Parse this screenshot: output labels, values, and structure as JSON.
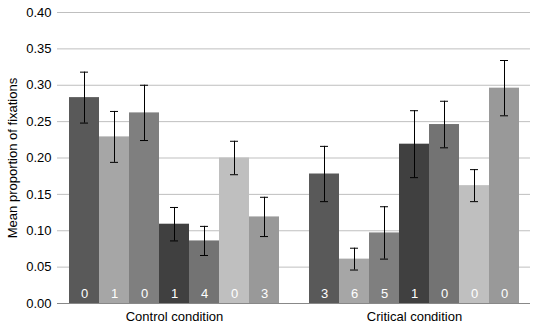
{
  "chart_data": {
    "type": "bar",
    "y_label": "Mean proportion of fixations",
    "categories": [
      "Control condition",
      "Critical condition"
    ],
    "series": [
      {
        "color": "#595959",
        "values": [
          0.283,
          0.178
        ],
        "errors": [
          0.035,
          0.038
        ],
        "counts": [
          0,
          3
        ]
      },
      {
        "color": "#a6a6a6",
        "values": [
          0.229,
          0.061
        ],
        "errors": [
          0.035,
          0.015
        ],
        "counts": [
          1,
          6
        ]
      },
      {
        "color": "#7f7f7f",
        "values": [
          0.262,
          0.097
        ],
        "errors": [
          0.038,
          0.036
        ],
        "counts": [
          0,
          5
        ]
      },
      {
        "color": "#404040",
        "values": [
          0.109,
          0.219
        ],
        "errors": [
          0.023,
          0.046
        ],
        "counts": [
          1,
          1
        ]
      },
      {
        "color": "#737373",
        "values": [
          0.086,
          0.246
        ],
        "errors": [
          0.02,
          0.032
        ],
        "counts": [
          4,
          0
        ]
      },
      {
        "color": "#bfbfbf",
        "values": [
          0.2,
          0.162
        ],
        "errors": [
          0.023,
          0.022
        ],
        "counts": [
          0,
          0
        ]
      },
      {
        "color": "#999999",
        "values": [
          0.119,
          0.296
        ],
        "errors": [
          0.027,
          0.038
        ],
        "counts": [
          3,
          0
        ]
      }
    ],
    "ylim": [
      0,
      0.4
    ],
    "yticks": [
      {
        "value": 0,
        "label": "0.00"
      },
      {
        "value": 0.05,
        "label": "0.05"
      },
      {
        "value": 0.1,
        "label": "0.10"
      },
      {
        "value": 0.15,
        "label": "0.15"
      },
      {
        "value": 0.2,
        "label": "0.20"
      },
      {
        "value": 0.25,
        "label": "0.25"
      },
      {
        "value": 0.3,
        "label": "0.30"
      },
      {
        "value": 0.35,
        "label": "0.35"
      },
      {
        "value": 0.4,
        "label": "0.40"
      }
    ],
    "grid": true
  }
}
